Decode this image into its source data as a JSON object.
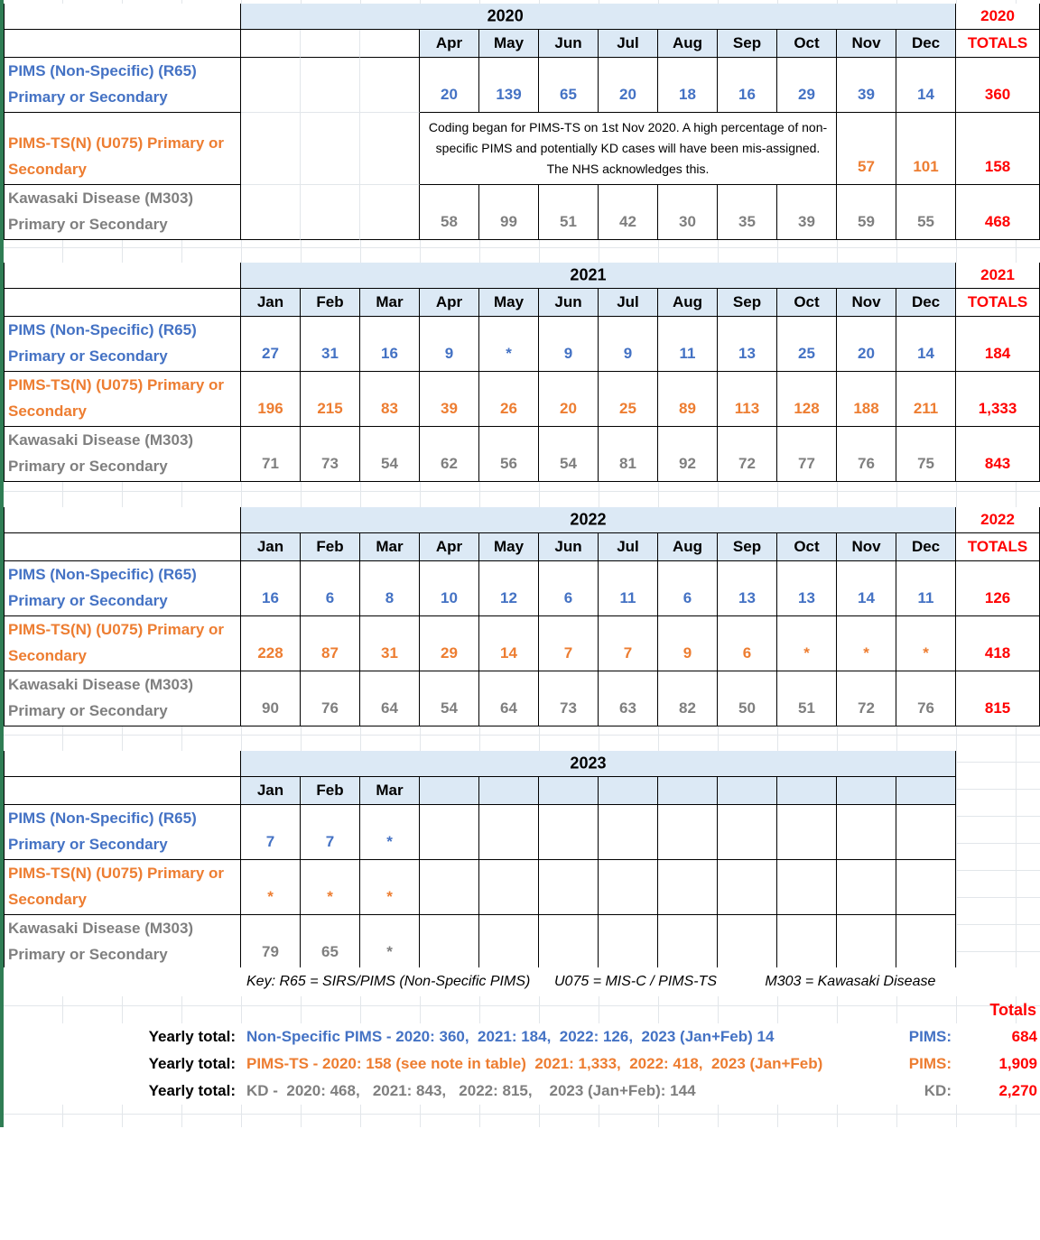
{
  "colors": {
    "blue": "#4472C4",
    "orange": "#ED7D31",
    "gray": "#7F7F7F",
    "red": "#FF0000",
    "header_fill": "#DCE9F5",
    "gridline": "#E2E6EA",
    "sheet_edge_green": "#2F7D54"
  },
  "series_labels": [
    {
      "key": "pims",
      "label": "PIMS (Non-Specific) (R65) Primary or Secondary",
      "color": "blue"
    },
    {
      "key": "pims-ts",
      "label": "PIMS-TS(N) (U075) Primary or Secondary",
      "color": "orange"
    },
    {
      "key": "kd",
      "label": "Kawasaki Disease (M303) Primary or Secondary",
      "color": "gray"
    }
  ],
  "tables": [
    {
      "year": "2020",
      "band_text": "2020",
      "totals_head": [
        "2020",
        "TOTALS"
      ],
      "lead_gap_cols": 3,
      "months": [
        "Apr",
        "May",
        "Jun",
        "Jul",
        "Aug",
        "Sep",
        "Oct",
        "Nov",
        "Dec"
      ],
      "note": {
        "text": "Coding began for PIMS-TS on 1st Nov 2020. A high percentage of non-specific PIMS and potentially KD cases will have been mis-assigned. The NHS acknowledges this.",
        "colspan": 7
      },
      "rows": [
        {
          "key": "pims",
          "values": [
            "20",
            "139",
            "65",
            "20",
            "18",
            "16",
            "29",
            "39",
            "14"
          ],
          "total": "360"
        },
        {
          "key": "pims-ts",
          "values": [
            "57",
            "101"
          ],
          "total": "158"
        },
        {
          "key": "kd",
          "values": [
            "58",
            "99",
            "51",
            "42",
            "30",
            "35",
            "39",
            "59",
            "55"
          ],
          "total": "468"
        }
      ]
    },
    {
      "year": "2021",
      "band_text": "2021",
      "totals_head": [
        "2021",
        "TOTALS"
      ],
      "lead_gap_cols": 0,
      "months": [
        "Jan",
        "Feb",
        "Mar",
        "Apr",
        "May",
        "Jun",
        "Jul",
        "Aug",
        "Sep",
        "Oct",
        "Nov",
        "Dec"
      ],
      "rows": [
        {
          "key": "pims",
          "values": [
            "27",
            "31",
            "16",
            "9",
            "*",
            "9",
            "9",
            "11",
            "13",
            "25",
            "20",
            "14"
          ],
          "total": "184"
        },
        {
          "key": "pims-ts",
          "values": [
            "196",
            "215",
            "83",
            "39",
            "26",
            "20",
            "25",
            "89",
            "113",
            "128",
            "188",
            "211"
          ],
          "total": "1,333"
        },
        {
          "key": "kd",
          "values": [
            "71",
            "73",
            "54",
            "62",
            "56",
            "54",
            "81",
            "92",
            "72",
            "77",
            "76",
            "75"
          ],
          "total": "843"
        }
      ]
    },
    {
      "year": "2022",
      "band_text": "2022",
      "totals_head": [
        "2022",
        "TOTALS"
      ],
      "lead_gap_cols": 0,
      "months": [
        "Jan",
        "Feb",
        "Mar",
        "Apr",
        "May",
        "Jun",
        "Jul",
        "Aug",
        "Sep",
        "Oct",
        "Nov",
        "Dec"
      ],
      "rows": [
        {
          "key": "pims",
          "values": [
            "16",
            "6",
            "8",
            "10",
            "12",
            "6",
            "11",
            "6",
            "13",
            "13",
            "14",
            "11"
          ],
          "total": "126"
        },
        {
          "key": "pims-ts",
          "values": [
            "228",
            "87",
            "31",
            "29",
            "14",
            "7",
            "7",
            "9",
            "6",
            "*",
            "*",
            "*"
          ],
          "total": "418"
        },
        {
          "key": "kd",
          "values": [
            "90",
            "76",
            "64",
            "54",
            "64",
            "73",
            "63",
            "82",
            "50",
            "51",
            "72",
            "76"
          ],
          "total": "815"
        }
      ]
    },
    {
      "year": "2023",
      "band_text": "2023",
      "totals_head": null,
      "lead_gap_cols": 0,
      "months": [
        "Jan",
        "Feb",
        "Mar",
        "",
        "",
        "",
        "",
        "",
        "",
        "",
        "",
        ""
      ],
      "rows": [
        {
          "key": "pims",
          "values": [
            "7",
            "7",
            "*",
            "",
            "",
            "",
            "",
            "",
            "",
            "",
            "",
            ""
          ],
          "total": null
        },
        {
          "key": "pims-ts",
          "values": [
            "*",
            "*",
            "*",
            "",
            "",
            "",
            "",
            "",
            "",
            "",
            "",
            ""
          ],
          "total": null
        },
        {
          "key": "kd",
          "values": [
            "79",
            "65",
            "*",
            "",
            "",
            "",
            "",
            "",
            "",
            "",
            "",
            ""
          ],
          "total": null
        }
      ]
    }
  ],
  "key_note": "Key: R65 = SIRS/PIMS (Non-Specific PIMS)      U075 = MIS-C / PIMS-TS            M303 = Kawasaki Disease",
  "totals_section": {
    "header": "Totals",
    "rows": [
      {
        "label": "Yearly total:",
        "text": "Non-Specific PIMS - 2020: 360,  2021: 184,  2022: 126,  2023 (Jan+Feb) 14",
        "tag": "PIMS:",
        "total": "684",
        "color": "blue"
      },
      {
        "label": "Yearly total:",
        "text": "PIMS-TS - 2020: 158 (see note in table)  2021: 1,333,  2022: 418,  2023 (Jan+Feb)",
        "tag": "PIMS:",
        "total": "1,909",
        "color": "orange"
      },
      {
        "label": "Yearly total:",
        "text": "KD -  2020: 468,   2021: 843,   2022: 815,    2023 (Jan+Feb): 144",
        "tag": "KD:",
        "total": "2,270",
        "color": "gray"
      }
    ]
  }
}
